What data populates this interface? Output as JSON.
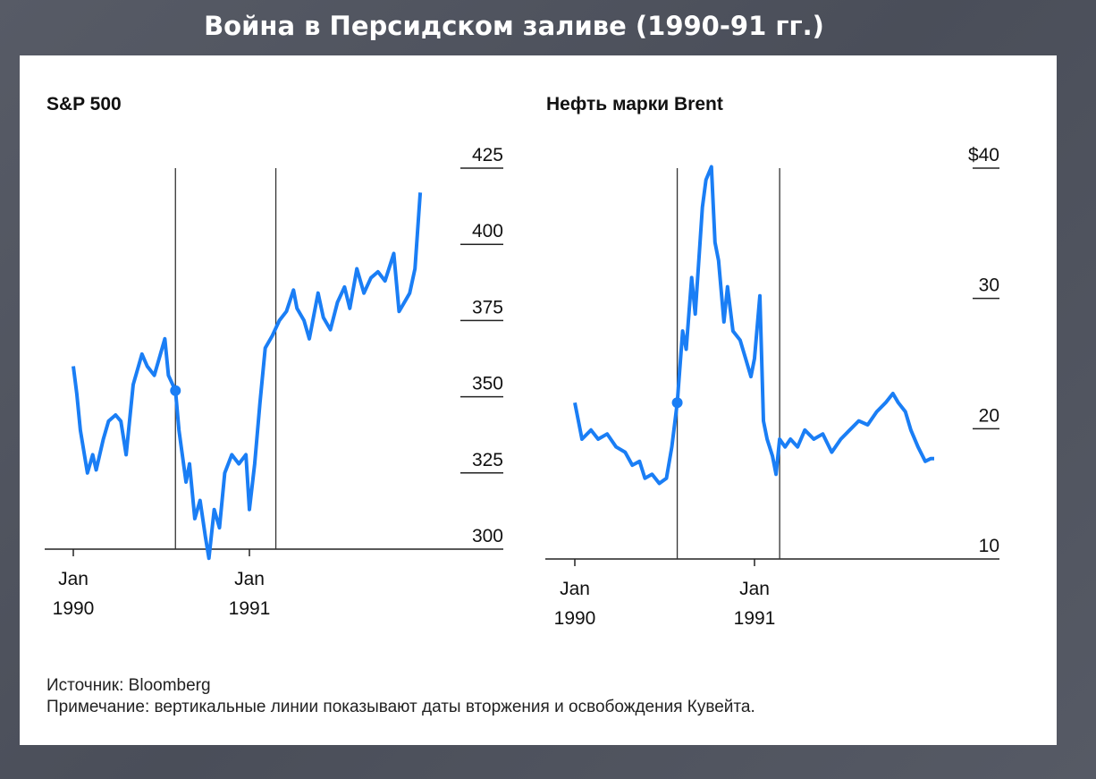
{
  "page_title": "Война в Персидском заливе (1990-91 гг.)",
  "source": "Источник: Bloomberg",
  "note": "Примечание: вертикальные линии показывают даты вторжения и освобождения Кувейта.",
  "colors": {
    "line": "#1a7ef5",
    "axis": "#222222",
    "background": "#4f535e"
  },
  "chart_data": [
    {
      "type": "line",
      "title": "S&P 500",
      "xlabel": "",
      "ylabel": "",
      "ylim": [
        300,
        425
      ],
      "yticks": [
        {
          "value": 300,
          "label": "300"
        },
        {
          "value": 325,
          "label": "325"
        },
        {
          "value": 350,
          "label": "350"
        },
        {
          "value": 375,
          "label": "375"
        },
        {
          "value": 400,
          "label": "400"
        },
        {
          "value": 425,
          "label": "425"
        }
      ],
      "xticks": [
        {
          "value": 1990.0,
          "line1": "Jan",
          "line2": "1990"
        },
        {
          "value": 1991.0,
          "line1": "Jan",
          "line2": "1991"
        }
      ],
      "xlim": [
        1990.0,
        1992.0
      ],
      "vlines": [
        1990.58,
        1991.15
      ],
      "marker": {
        "x": 1990.58,
        "y": 352
      },
      "series": [
        {
          "name": "S&P 500",
          "x": [
            1990.0,
            1990.02,
            1990.04,
            1990.08,
            1990.11,
            1990.13,
            1990.17,
            1990.2,
            1990.24,
            1990.27,
            1990.3,
            1990.34,
            1990.39,
            1990.42,
            1990.46,
            1990.49,
            1990.52,
            1990.54,
            1990.58,
            1990.6,
            1990.64,
            1990.66,
            1990.69,
            1990.72,
            1990.75,
            1990.77,
            1990.8,
            1990.83,
            1990.86,
            1990.9,
            1990.94,
            1990.98,
            1991.0,
            1991.03,
            1991.06,
            1991.09,
            1991.13,
            1991.17,
            1991.21,
            1991.25,
            1991.27,
            1991.31,
            1991.34,
            1991.39,
            1991.42,
            1991.46,
            1991.5,
            1991.54,
            1991.57,
            1991.61,
            1991.65,
            1991.69,
            1991.73,
            1991.77,
            1991.82,
            1991.85,
            1991.88,
            1991.91,
            1991.94,
            1991.97
          ],
          "y": [
            360,
            351,
            339,
            325,
            331,
            326,
            336,
            342,
            344,
            342,
            331,
            354,
            364,
            360,
            357,
            363,
            369,
            357,
            352,
            339,
            322,
            328,
            310,
            316,
            304,
            297,
            313,
            307,
            325,
            331,
            328,
            331,
            313,
            328,
            348,
            366,
            370,
            375,
            378,
            385,
            379,
            375,
            369,
            384,
            376,
            372,
            381,
            386,
            379,
            392,
            384,
            389,
            391,
            388,
            397,
            378,
            381,
            384,
            392,
            417
          ]
        }
      ]
    },
    {
      "type": "line",
      "title": "Нефть марки Brent",
      "xlabel": "",
      "ylabel": "",
      "ylim": [
        10,
        40
      ],
      "yticks": [
        {
          "value": 10,
          "label": "10"
        },
        {
          "value": 20,
          "label": "20"
        },
        {
          "value": 30,
          "label": "30"
        },
        {
          "value": 40,
          "label": "$40"
        }
      ],
      "xticks": [
        {
          "value": 1990.0,
          "line1": "Jan",
          "line2": "1990"
        },
        {
          "value": 1991.0,
          "line1": "Jan",
          "line2": "1991"
        }
      ],
      "xlim": [
        1990.0,
        1992.0
      ],
      "vlines": [
        1990.57,
        1991.14
      ],
      "marker": {
        "x": 1990.57,
        "y": 22
      },
      "series": [
        {
          "name": "Brent",
          "x": [
            1990.0,
            1990.02,
            1990.04,
            1990.09,
            1990.13,
            1990.18,
            1990.23,
            1990.28,
            1990.32,
            1990.36,
            1990.39,
            1990.43,
            1990.47,
            1990.51,
            1990.54,
            1990.57,
            1990.6,
            1990.62,
            1990.65,
            1990.67,
            1990.71,
            1990.73,
            1990.76,
            1990.78,
            1990.8,
            1990.83,
            1990.85,
            1990.88,
            1990.92,
            1990.95,
            1990.98,
            1991.0,
            1991.03,
            1991.05,
            1991.07,
            1991.1,
            1991.12,
            1991.14,
            1991.17,
            1991.2,
            1991.24,
            1991.28,
            1991.33,
            1991.38,
            1991.43,
            1991.48,
            1991.53,
            1991.58,
            1991.63,
            1991.68,
            1991.73,
            1991.77,
            1991.8,
            1991.84,
            1991.87,
            1991.91,
            1991.95,
            1991.98,
            1992.0
          ],
          "y": [
            22,
            20.6,
            19.2,
            19.9,
            19.2,
            19.6,
            18.6,
            18.2,
            17.2,
            17.5,
            16.2,
            16.5,
            15.8,
            16.2,
            18.6,
            22,
            27.5,
            26.1,
            31.6,
            28.8,
            37,
            39.1,
            40.1,
            34.3,
            32.9,
            28.2,
            30.9,
            27.5,
            26.8,
            25.4,
            24,
            25.4,
            30.2,
            20.6,
            19.2,
            17.9,
            16.5,
            19.2,
            18.6,
            19.2,
            18.6,
            19.9,
            19.2,
            19.6,
            18.2,
            19.2,
            19.9,
            20.6,
            20.3,
            21.3,
            22,
            22.7,
            22,
            21.3,
            19.9,
            18.6,
            17.5,
            17.7,
            17.7
          ]
        }
      ]
    }
  ]
}
